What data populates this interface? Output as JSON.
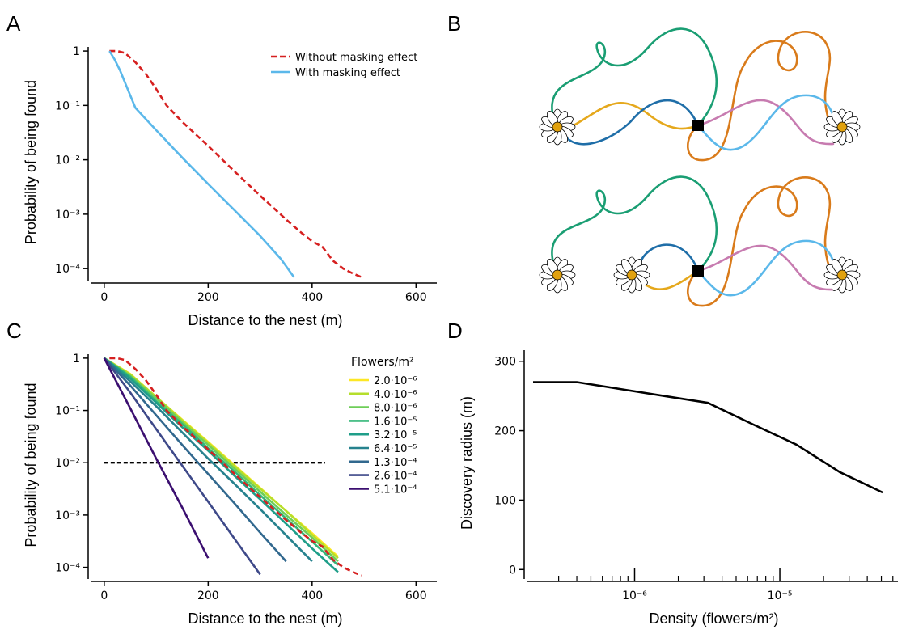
{
  "panels": [
    "A",
    "B",
    "C",
    "D"
  ],
  "chart_data": [
    {
      "type": "line",
      "ylog": true,
      "xlabel": "Distance to the nest (m)",
      "ylabel": "Probability of being found",
      "xlim": [
        -20,
        640
      ],
      "ylim": [
        6.9e-05,
        1.19
      ],
      "xticks": [
        0,
        200,
        400,
        600
      ],
      "yticks": [
        {
          "value": 0.0001,
          "label": "10⁻⁴"
        },
        {
          "value": 0.001,
          "label": "10⁻³"
        },
        {
          "value": 0.01,
          "label": "10⁻²"
        },
        {
          "value": 0.1,
          "label": "10⁻¹"
        },
        1
      ],
      "legend": "upper right",
      "series": [
        {
          "name": "Without masking effect",
          "color": "#d62020",
          "dashed": true,
          "x": [
            10,
            25,
            40,
            60,
            80,
            100,
            120,
            150,
            200,
            250,
            300,
            350,
            380,
            400,
            420,
            440,
            460,
            480,
            495
          ],
          "values": [
            1,
            1,
            0.92,
            0.62,
            0.38,
            0.2,
            0.1,
            0.05,
            0.018,
            0.0062,
            0.0022,
            0.0008,
            0.00045,
            0.00032,
            0.00025,
            0.00014,
            0.0001,
            8e-05,
            7e-05
          ]
        },
        {
          "name": "With masking effect",
          "color": "#5bb8ea",
          "dashed": false,
          "x": [
            10,
            20,
            30,
            45,
            60,
            100,
            150,
            200,
            250,
            300,
            340,
            365
          ],
          "values": [
            1,
            0.7,
            0.45,
            0.2,
            0.09,
            0.035,
            0.011,
            0.0036,
            0.0012,
            0.0004,
            0.00015,
            7e-05
          ]
        }
      ]
    },
    {
      "type": "line",
      "ylog": true,
      "xlabel": "Distance to the nest (m)",
      "ylabel": "Probability of being found",
      "xlim": [
        -20,
        640
      ],
      "ylim": [
        6.9e-05,
        1.19
      ],
      "xticks": [
        0,
        200,
        400,
        600
      ],
      "yticks": [
        {
          "value": 0.0001,
          "label": "10⁻⁴"
        },
        {
          "value": 0.001,
          "label": "10⁻³"
        },
        {
          "value": 0.01,
          "label": "10⁻²"
        },
        {
          "value": 0.1,
          "label": "10⁻¹"
        },
        1
      ],
      "legend": "upper right",
      "legend_title": "Flowers/m²",
      "x": [
        0,
        50,
        100,
        150,
        200,
        250,
        300,
        350,
        400,
        450,
        500
      ],
      "series": [
        {
          "name": "2.0·10⁻⁶",
          "color": "#fde725",
          "values": [
            1,
            0.5,
            0.18,
            0.067,
            0.025,
            0.0091,
            0.0033,
            0.0012,
            0.00045,
            0.00016,
            null
          ]
        },
        {
          "name": "4.0·10⁻⁶",
          "color": "#b5de2b",
          "values": [
            1,
            0.49,
            0.18,
            0.065,
            0.024,
            0.0087,
            0.0032,
            0.0012,
            0.00042,
            0.00015,
            null
          ]
        },
        {
          "name": "8.0·10⁻⁶",
          "color": "#6ece58",
          "values": [
            1,
            0.46,
            0.17,
            0.06,
            0.022,
            0.0078,
            0.0028,
            0.001,
            0.00037,
            0.00013,
            null
          ]
        },
        {
          "name": "1.6·10⁻⁵",
          "color": "#35b779",
          "values": [
            1,
            0.44,
            0.15,
            0.055,
            0.019,
            0.0069,
            0.0024,
            0.00086,
            0.00031,
            0.00011,
            null
          ]
        },
        {
          "name": "3.2·10⁻⁵",
          "color": "#1f9e89",
          "values": [
            1,
            0.41,
            0.14,
            0.048,
            0.017,
            0.0057,
            0.002,
            0.00068,
            0.00023,
            8.1e-05,
            null
          ]
        },
        {
          "name": "6.4·10⁻⁵",
          "color": "#26828e",
          "values": [
            1,
            0.36,
            0.12,
            0.038,
            0.012,
            0.004,
            0.0013,
            0.00041,
            0.00013,
            null,
            null
          ]
        },
        {
          "name": "1.3·10⁻⁴",
          "color": "#31688e",
          "values": [
            1,
            0.3,
            0.081,
            0.022,
            0.0061,
            0.0017,
            0.00046,
            0.00013,
            null,
            null,
            null
          ]
        },
        {
          "name": "2.6·10⁻⁴",
          "color": "#3e4989",
          "values": [
            1,
            0.22,
            0.044,
            0.0088,
            0.0018,
            0.00036,
            7.3e-05,
            null,
            null,
            null,
            null
          ]
        },
        {
          "name": "5.1·10⁻⁴",
          "color": "#3b0f70",
          "values": [
            1,
            0.11,
            0.012,
            0.0014,
            0.00015,
            null,
            null,
            null,
            null,
            null,
            null
          ]
        }
      ],
      "reference_line": {
        "color": "#d62020",
        "dashed": true,
        "x": [
          10,
          25,
          40,
          60,
          80,
          100,
          120,
          150,
          200,
          250,
          300,
          350,
          380,
          400,
          420,
          440,
          460,
          480,
          495
        ],
        "values": [
          1,
          1,
          0.92,
          0.62,
          0.38,
          0.2,
          0.1,
          0.05,
          0.018,
          0.0062,
          0.0022,
          0.0008,
          0.00045,
          0.00032,
          0.00025,
          0.00014,
          0.0001,
          8e-05,
          7e-05
        ]
      },
      "hline": {
        "value": 0.01,
        "color": "#000000",
        "dashed": true,
        "x": [
          0,
          425
        ]
      }
    },
    {
      "type": "line",
      "xlog": true,
      "xlabel": "Density (flowers/m²)",
      "ylabel": "Discovery radius (m)",
      "xlim": [
        1.9e-07,
        6.5e-05
      ],
      "ylim": [
        -9,
        316
      ],
      "xticks": [
        {
          "value": 1e-06,
          "label": "10⁻⁶"
        },
        {
          "value": 1e-05,
          "label": "10⁻⁵"
        }
      ],
      "xminorticks": [
        3e-07,
        4e-07,
        5e-07,
        6e-07,
        7e-07,
        8e-07,
        9e-07,
        2e-06,
        3e-06,
        4e-06,
        5e-06,
        6e-06,
        7e-06,
        8e-06,
        9e-06,
        2e-05,
        3e-05,
        4e-05,
        5e-05,
        6e-05
      ],
      "yticks": [
        0,
        100,
        200,
        300
      ],
      "color": "#000000",
      "x": [
        2e-07,
        4e-07,
        8e-07,
        1.6e-06,
        3.2e-06,
        6.4e-06,
        1.3e-05,
        2.6e-05,
        5.1e-05
      ],
      "values": [
        270,
        270,
        260,
        250,
        240,
        210,
        180,
        140,
        111
      ]
    }
  ]
}
